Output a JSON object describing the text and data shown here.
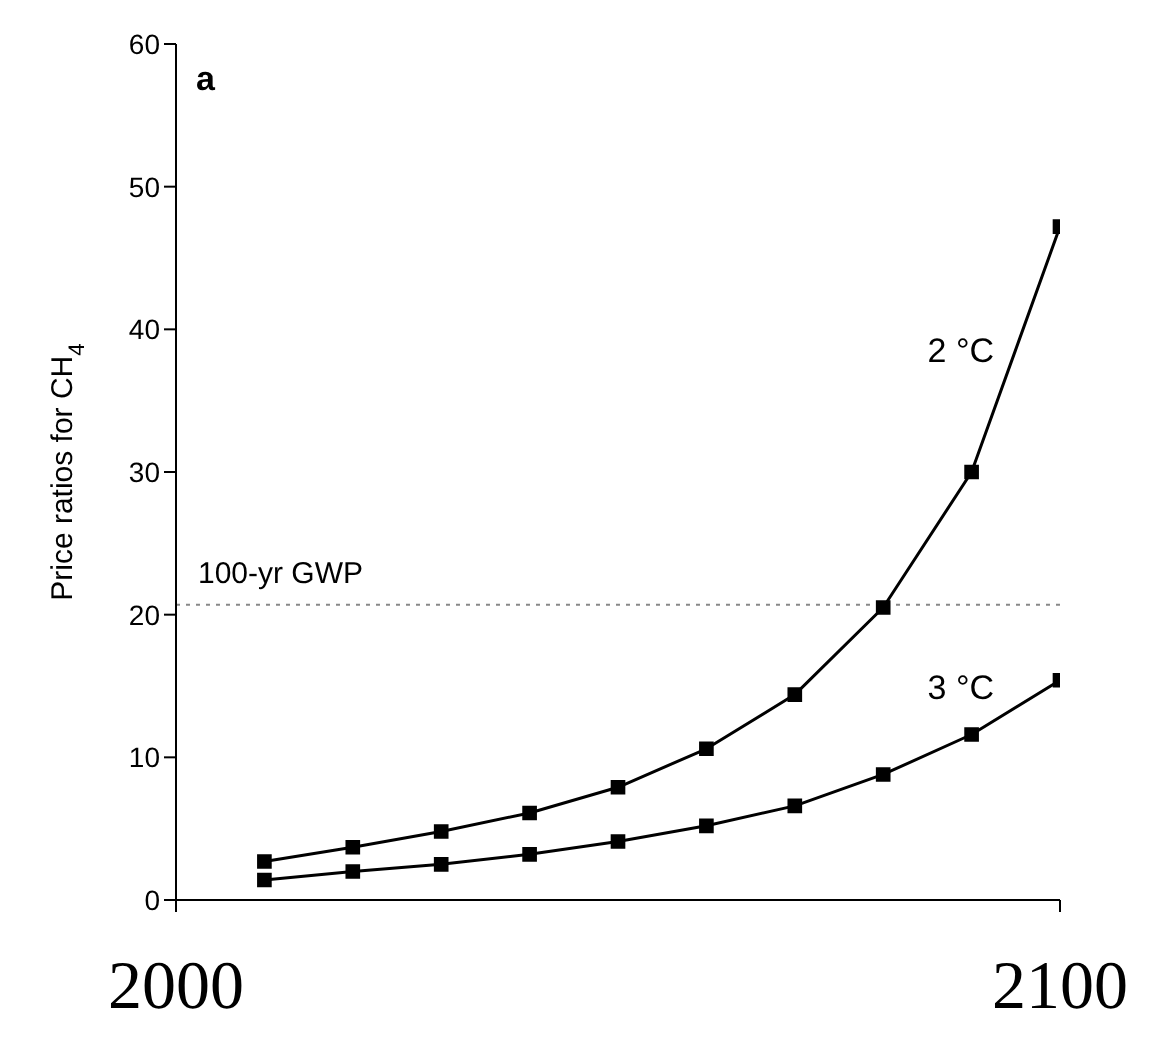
{
  "chart_data": {
    "type": "line",
    "ylabel": "Price ratios for CH$_{4}$",
    "x": [
      2010,
      2020,
      2030,
      2040,
      2050,
      2060,
      2070,
      2080,
      2090,
      2100
    ],
    "series": [
      {
        "name": "2 °C",
        "color": "#000000",
        "values": [
          2.7,
          3.7,
          4.8,
          6.1,
          7.9,
          10.6,
          14.4,
          20.5,
          30,
          47.2
        ]
      },
      {
        "name": "3 °C",
        "color": "#000000",
        "values": [
          1.4,
          2.0,
          2.5,
          3.2,
          4.1,
          5.2,
          6.6,
          8.8,
          11.6,
          15.4
        ]
      }
    ],
    "xlim": [
      2000,
      2100
    ],
    "xticks": [
      2000,
      2100
    ],
    "ylim": [
      0,
      60
    ],
    "yticks": [
      0,
      10,
      20,
      30,
      40,
      50,
      60
    ],
    "ref_lines": [
      {
        "axis": "y",
        "value": 20.7,
        "label": "100-yr GWP",
        "color": "#888888",
        "line_style": "dotted"
      }
    ],
    "annotations": [
      "a"
    ],
    "marker": "square",
    "line_style": "solid",
    "grid": false,
    "legend": false
  }
}
